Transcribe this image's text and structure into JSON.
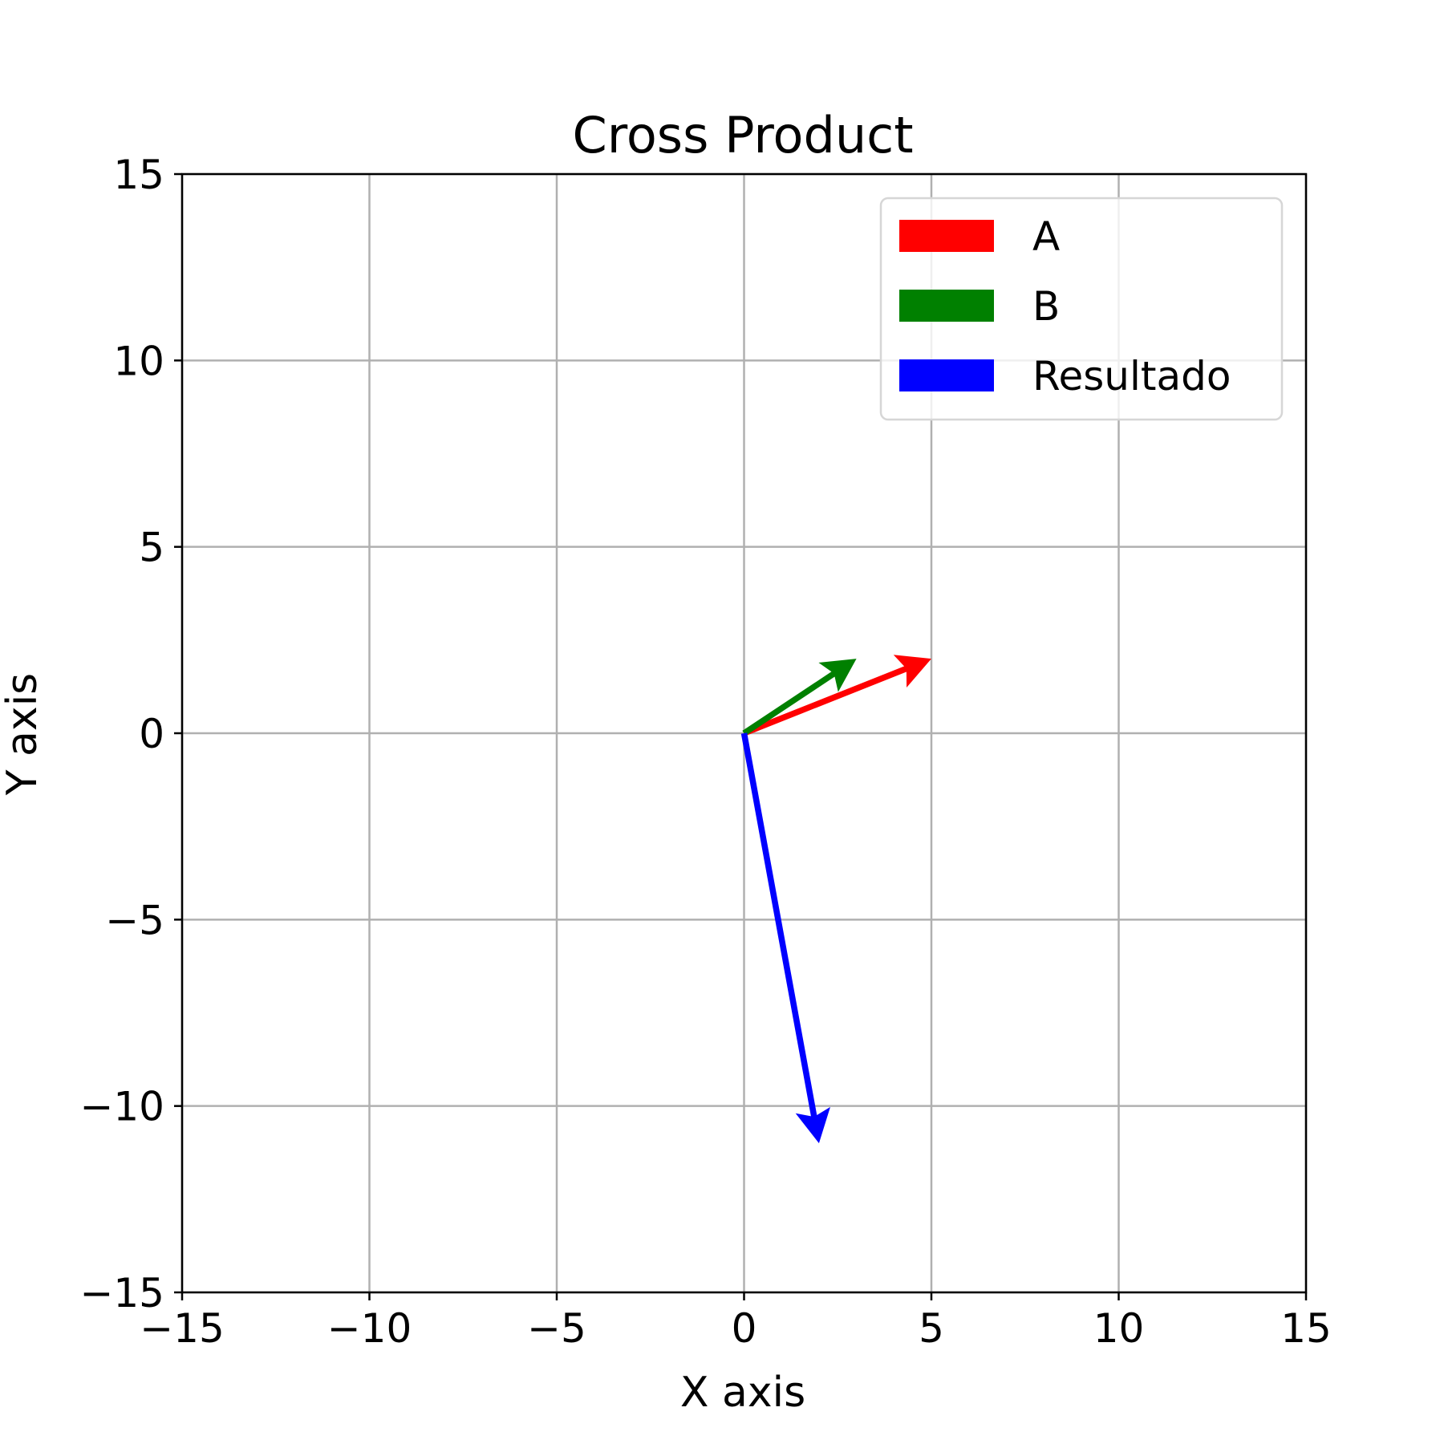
{
  "chart_data": {
    "type": "quiver",
    "title": "Cross Product",
    "xlabel": "X axis",
    "ylabel": "Y axis",
    "xlim": [
      -15,
      15
    ],
    "ylim": [
      -15,
      15
    ],
    "xticks": [
      -15,
      -10,
      -5,
      0,
      5,
      10,
      15
    ],
    "yticks": [
      -15,
      -10,
      -5,
      0,
      5,
      10,
      15
    ],
    "xtick_labels": [
      "−15",
      "−10",
      "−5",
      "0",
      "5",
      "10",
      "15"
    ],
    "ytick_labels": [
      "−15",
      "−10",
      "−5",
      "0",
      "5",
      "10",
      "15"
    ],
    "grid": true,
    "legend_position": "top-right",
    "series": [
      {
        "name": "A",
        "color": "#ff0000",
        "origin": [
          0,
          0
        ],
        "vector": [
          5,
          2
        ]
      },
      {
        "name": "B",
        "color": "#008000",
        "origin": [
          0,
          0
        ],
        "vector": [
          3,
          2
        ]
      },
      {
        "name": "Resultado",
        "color": "#0000ff",
        "origin": [
          0,
          0
        ],
        "vector": [
          2,
          -11
        ]
      }
    ]
  }
}
